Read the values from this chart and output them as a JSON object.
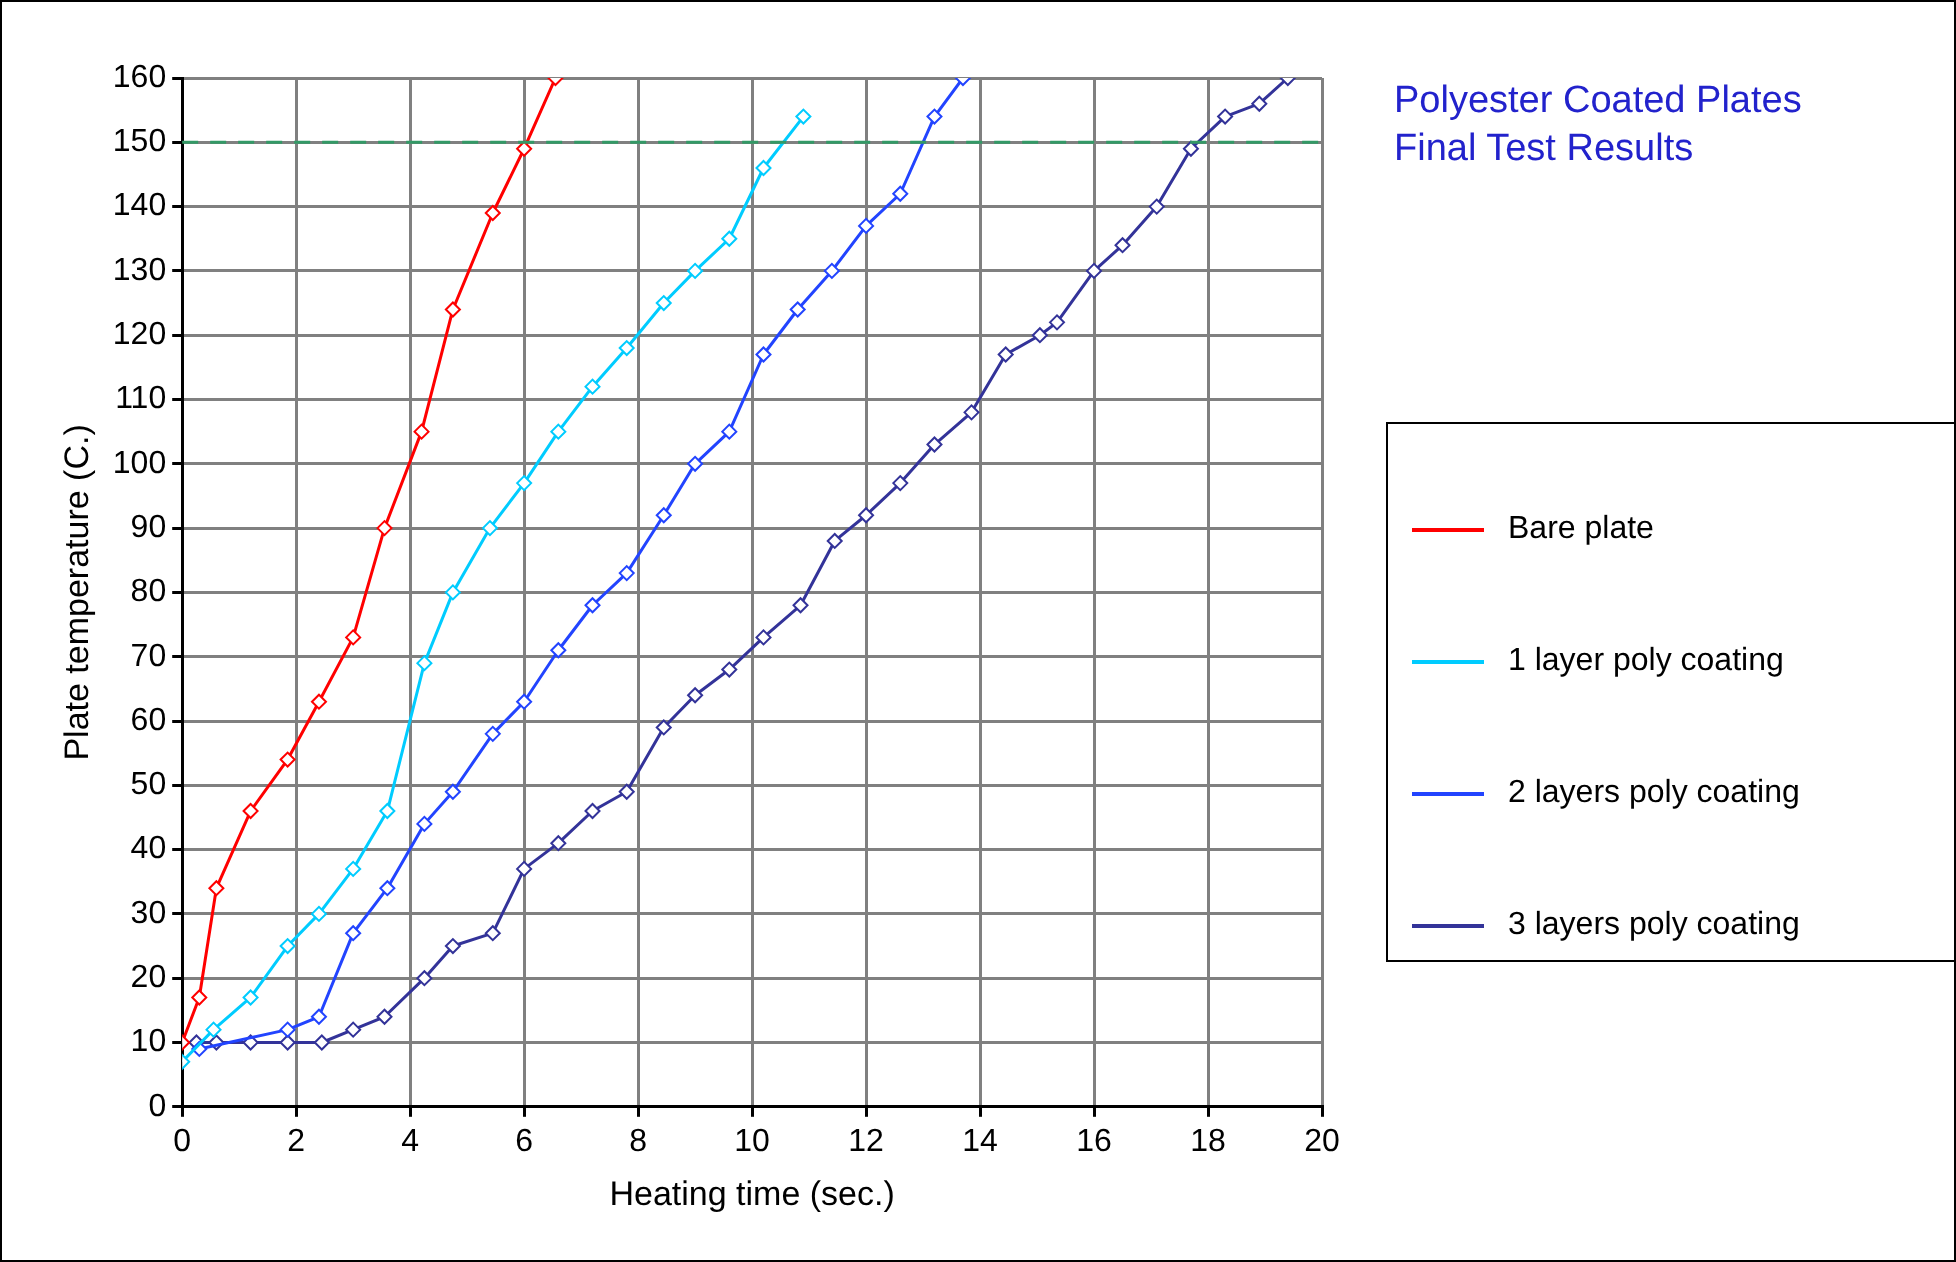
{
  "chart_data": {
    "type": "line",
    "title": "Polyester Coated Plates\nFinal Test Results",
    "xlabel": "Heating time (sec.)",
    "ylabel": "Plate temperature (C.)",
    "xlim": [
      0,
      20
    ],
    "xticks": [
      0,
      2,
      4,
      6,
      8,
      10,
      12,
      14,
      16,
      18,
      20
    ],
    "ylim": [
      0,
      160
    ],
    "yticks": [
      0,
      10,
      20,
      30,
      40,
      50,
      60,
      70,
      80,
      90,
      100,
      110,
      120,
      130,
      140,
      150,
      160
    ],
    "grid": true,
    "legend": "right",
    "marker": "diamond",
    "line_style": "solid",
    "ref_lines": [
      {
        "axis": "y",
        "value": 150,
        "color": "#339966",
        "line_style": "dashed"
      }
    ],
    "series": [
      {
        "name": "Bare plate",
        "color": "#ff0000",
        "x": [
          0,
          0.3,
          0.6,
          1.2,
          1.85,
          2.4,
          3,
          3.55,
          4.2,
          4.75,
          5.45,
          6,
          6.55
        ],
        "values": [
          10,
          17,
          34,
          46,
          54,
          63,
          73,
          90,
          105,
          124,
          139,
          149,
          160
        ]
      },
      {
        "name": "1 layer poly coating",
        "color": "#00ccff",
        "x": [
          0,
          0.55,
          1.2,
          1.85,
          2.4,
          3,
          3.6,
          4.25,
          4.75,
          5.4,
          6,
          6.6,
          7.2,
          7.8,
          8.45,
          9,
          9.6,
          10.2,
          10.9
        ],
        "values": [
          7,
          12,
          17,
          25,
          30,
          37,
          46,
          69,
          80,
          90,
          97,
          105,
          112,
          118,
          125,
          130,
          135,
          146,
          154
        ]
      },
      {
        "name": "2 layers poly coating",
        "color": "#2244ff",
        "x": [
          0.3,
          1.85,
          2.4,
          3,
          3.6,
          4.25,
          4.75,
          5.45,
          6,
          6.6,
          7.2,
          7.8,
          8.45,
          9,
          9.6,
          10.2,
          10.8,
          11.4,
          12,
          12.6,
          13.2,
          13.7
        ],
        "values": [
          9,
          12,
          14,
          27,
          34,
          44,
          49,
          58,
          63,
          71,
          78,
          83,
          92,
          100,
          105,
          117,
          124,
          130,
          137,
          142,
          154,
          160
        ]
      },
      {
        "name": "3 layers poly coating",
        "color": "#333399",
        "x": [
          0.25,
          0.6,
          1.2,
          1.85,
          2.45,
          3,
          3.55,
          4.25,
          4.75,
          5.45,
          6,
          6.6,
          7.2,
          7.8,
          8.45,
          9,
          9.6,
          10.2,
          10.85,
          11.45,
          12,
          12.6,
          13.2,
          13.85,
          14.45,
          15.05,
          15.35,
          16,
          16.5,
          17.1,
          17.7,
          18.3,
          18.9,
          19.4
        ],
        "values": [
          10,
          10,
          10,
          10,
          10,
          12,
          14,
          20,
          25,
          27,
          37,
          41,
          46,
          49,
          59,
          64,
          68,
          73,
          78,
          88,
          92,
          97,
          103,
          108,
          117,
          120,
          122,
          130,
          134,
          140,
          149,
          154,
          156,
          160
        ]
      }
    ]
  }
}
